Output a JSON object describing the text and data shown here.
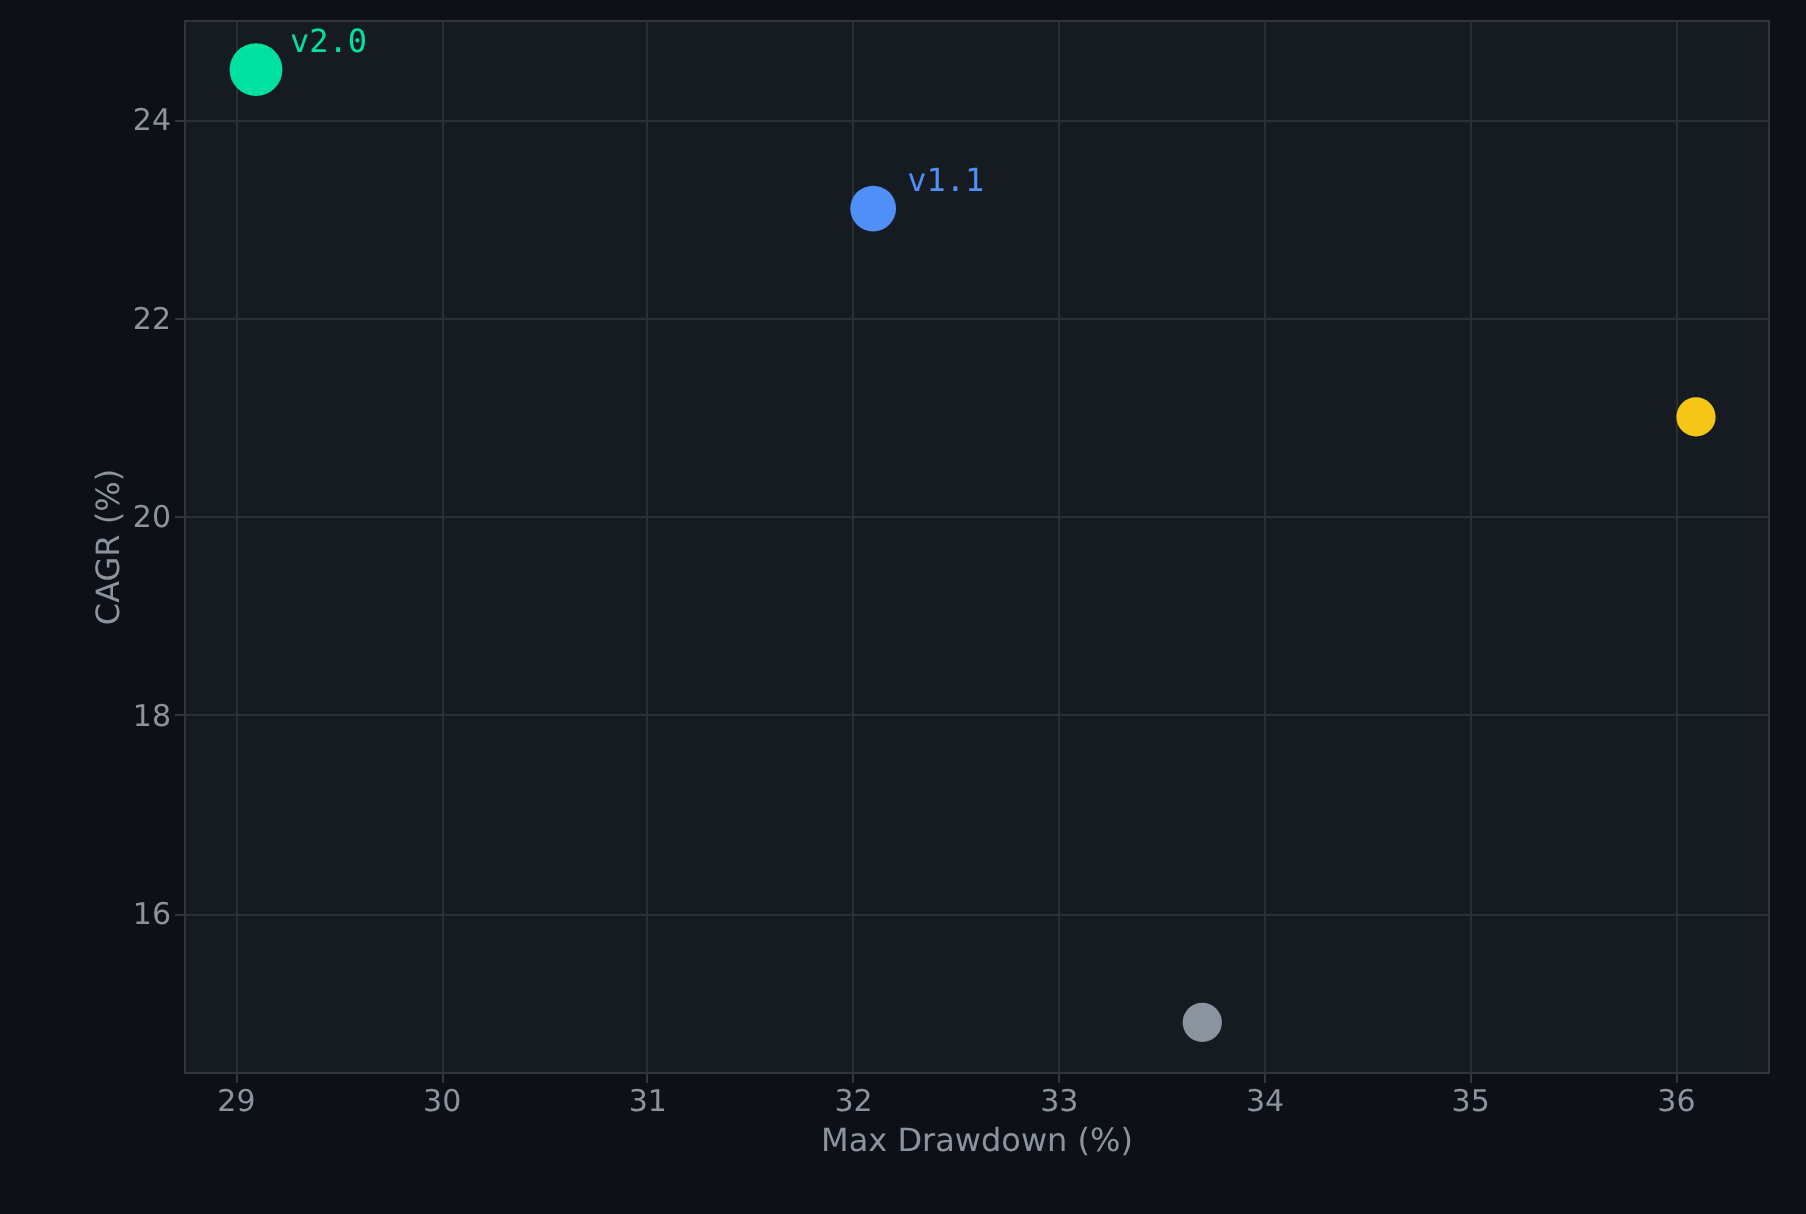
{
  "chart_data": {
    "type": "bubble",
    "xlabel": "Max Drawdown (%)",
    "ylabel": "CAGR (%)",
    "xlim": [
      28.75,
      36.45
    ],
    "ylim": [
      14.4,
      25
    ],
    "xticks": [
      29,
      30,
      31,
      32,
      33,
      34,
      35,
      36
    ],
    "yticks": [
      16,
      18,
      20,
      22,
      24
    ],
    "grid": true,
    "series": [
      {
        "name": "v2.0",
        "color": "#00e0a0",
        "x": [
          29.1
        ],
        "values": [
          24.5
        ],
        "sizes": [
          1
        ]
      },
      {
        "name": "v1.1",
        "color": "#4f8ff7",
        "x": [
          32.1
        ],
        "values": [
          23.1
        ],
        "sizes": [
          0.75
        ]
      },
      {
        "color": "#f5c518",
        "x": [
          36.1
        ],
        "values": [
          21.0
        ],
        "sizes": [
          0.55
        ]
      },
      {
        "color": "#8b949e",
        "x": [
          33.7
        ],
        "values": [
          14.9
        ],
        "sizes": [
          0.55
        ]
      }
    ]
  }
}
